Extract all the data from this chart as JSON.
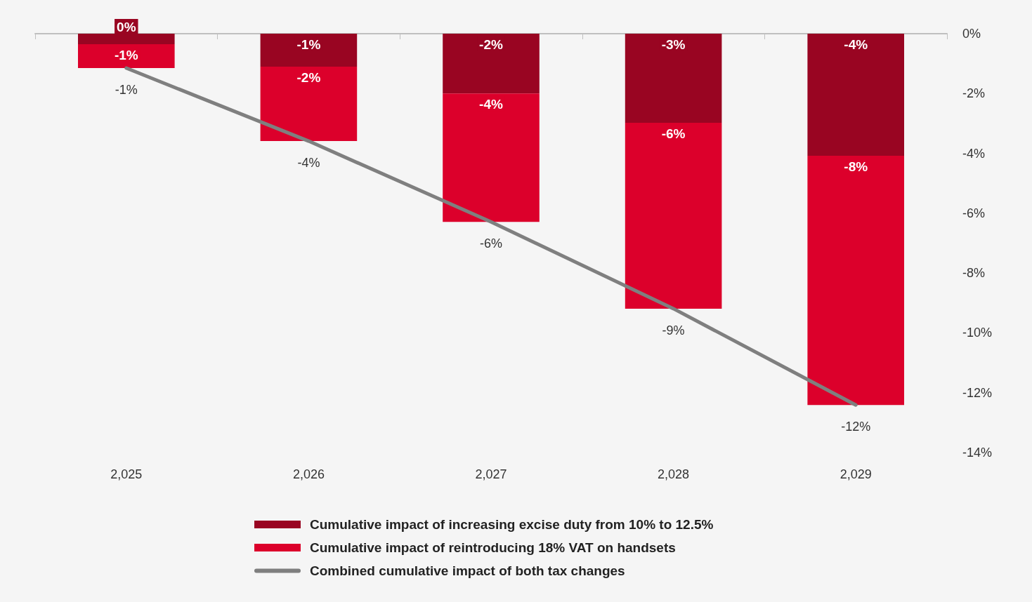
{
  "chart_data": {
    "type": "bar",
    "stacked": true,
    "categories": [
      "2,025",
      "2,026",
      "2,027",
      "2,028",
      "2,029"
    ],
    "series": [
      {
        "name": "Cumulative impact of increasing excise duty from 10% to 12.5%",
        "color": "#990522",
        "values": [
          -0.35,
          -1.1,
          -2.0,
          -2.98,
          -4.08
        ],
        "value_labels": [
          "0%",
          "-1%",
          "-2%",
          "-3%",
          "-4%"
        ]
      },
      {
        "name": "Cumulative impact of reintroducing 18% VAT on handsets",
        "color": "#dc002b",
        "values": [
          -0.8,
          -2.49,
          -4.29,
          -6.21,
          -8.33
        ],
        "value_labels": [
          "-1%",
          "-2%",
          "-4%",
          "-6%",
          "-8%"
        ]
      },
      {
        "name": "Combined cumulative impact of both tax changes",
        "type": "line",
        "color": "#7f7f7f",
        "values": [
          -1.15,
          -3.59,
          -6.29,
          -9.19,
          -12.41
        ],
        "value_labels": [
          "-1%",
          "-4%",
          "-6%",
          "-9%",
          "-12%"
        ],
        "marker": "none",
        "line_style": "solid"
      }
    ],
    "ylim": [
      -14,
      0
    ],
    "yticks": [
      {
        "value": 0,
        "label": "0%"
      },
      {
        "value": -2,
        "label": "-2%"
      },
      {
        "value": -4,
        "label": "-4%"
      },
      {
        "value": -6,
        "label": "-6%"
      },
      {
        "value": -8,
        "label": "-8%"
      },
      {
        "value": -10,
        "label": "-10%"
      },
      {
        "value": -12,
        "label": "-12%"
      },
      {
        "value": -14,
        "label": "-14%"
      }
    ],
    "grid": false,
    "legend": "bottom"
  }
}
